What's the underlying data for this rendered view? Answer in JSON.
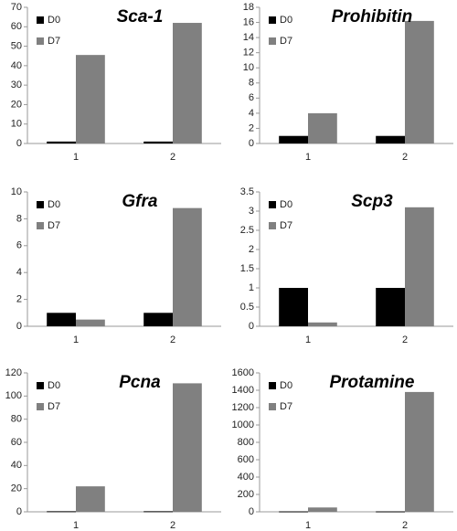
{
  "chart_data": [
    {
      "type": "bar",
      "title": "Sca-1",
      "categories": [
        "1",
        "2"
      ],
      "series": [
        {
          "name": "D0",
          "color": "#000000",
          "values": [
            1,
            1
          ]
        },
        {
          "name": "D7",
          "color": "#808080",
          "values": [
            45.5,
            62
          ]
        }
      ],
      "ylim": [
        0,
        70
      ],
      "yticks": [
        0,
        10,
        20,
        30,
        40,
        50,
        60,
        70
      ],
      "legend": "upper left"
    },
    {
      "type": "bar",
      "title": "Prohibitin",
      "categories": [
        "1",
        "2"
      ],
      "series": [
        {
          "name": "D0",
          "color": "#000000",
          "values": [
            1,
            1
          ]
        },
        {
          "name": "D7",
          "color": "#808080",
          "values": [
            4,
            16.2
          ]
        }
      ],
      "ylim": [
        0,
        18
      ],
      "yticks": [
        0,
        2,
        4,
        6,
        8,
        10,
        12,
        14,
        16,
        18
      ],
      "legend": "upper left"
    },
    {
      "type": "bar",
      "title": "Gfra",
      "categories": [
        "1",
        "2"
      ],
      "series": [
        {
          "name": "D0",
          "color": "#000000",
          "values": [
            1,
            1
          ]
        },
        {
          "name": "D7",
          "color": "#808080",
          "values": [
            0.5,
            8.8
          ]
        }
      ],
      "ylim": [
        0,
        10
      ],
      "yticks": [
        0,
        2,
        4,
        6,
        8,
        10
      ],
      "legend": "upper left"
    },
    {
      "type": "bar",
      "title": "Scp3",
      "categories": [
        "1",
        "2"
      ],
      "series": [
        {
          "name": "D0",
          "color": "#000000",
          "values": [
            1,
            1
          ]
        },
        {
          "name": "D7",
          "color": "#808080",
          "values": [
            0.1,
            3.1
          ]
        }
      ],
      "ylim": [
        0,
        3.5
      ],
      "yticks": [
        0,
        0.5,
        1,
        1.5,
        2,
        2.5,
        3,
        3.5
      ],
      "legend": "upper left"
    },
    {
      "type": "bar",
      "title": "Pcna",
      "categories": [
        "1",
        "2"
      ],
      "series": [
        {
          "name": "D0",
          "color": "#000000",
          "values": [
            0.5,
            0.5
          ]
        },
        {
          "name": "D7",
          "color": "#808080",
          "values": [
            22,
            111
          ]
        }
      ],
      "ylim": [
        0,
        120
      ],
      "yticks": [
        0,
        20,
        40,
        60,
        80,
        100,
        120
      ],
      "legend": "upper left"
    },
    {
      "type": "bar",
      "title": "Protamine",
      "categories": [
        "1",
        "2"
      ],
      "series": [
        {
          "name": "D0",
          "color": "#000000",
          "values": [
            5,
            5
          ]
        },
        {
          "name": "D7",
          "color": "#808080",
          "values": [
            50,
            1380
          ]
        }
      ],
      "ylim": [
        0,
        1600
      ],
      "yticks": [
        0,
        200,
        400,
        600,
        800,
        1000,
        1200,
        1400,
        1600
      ],
      "legend": "upper left"
    }
  ]
}
